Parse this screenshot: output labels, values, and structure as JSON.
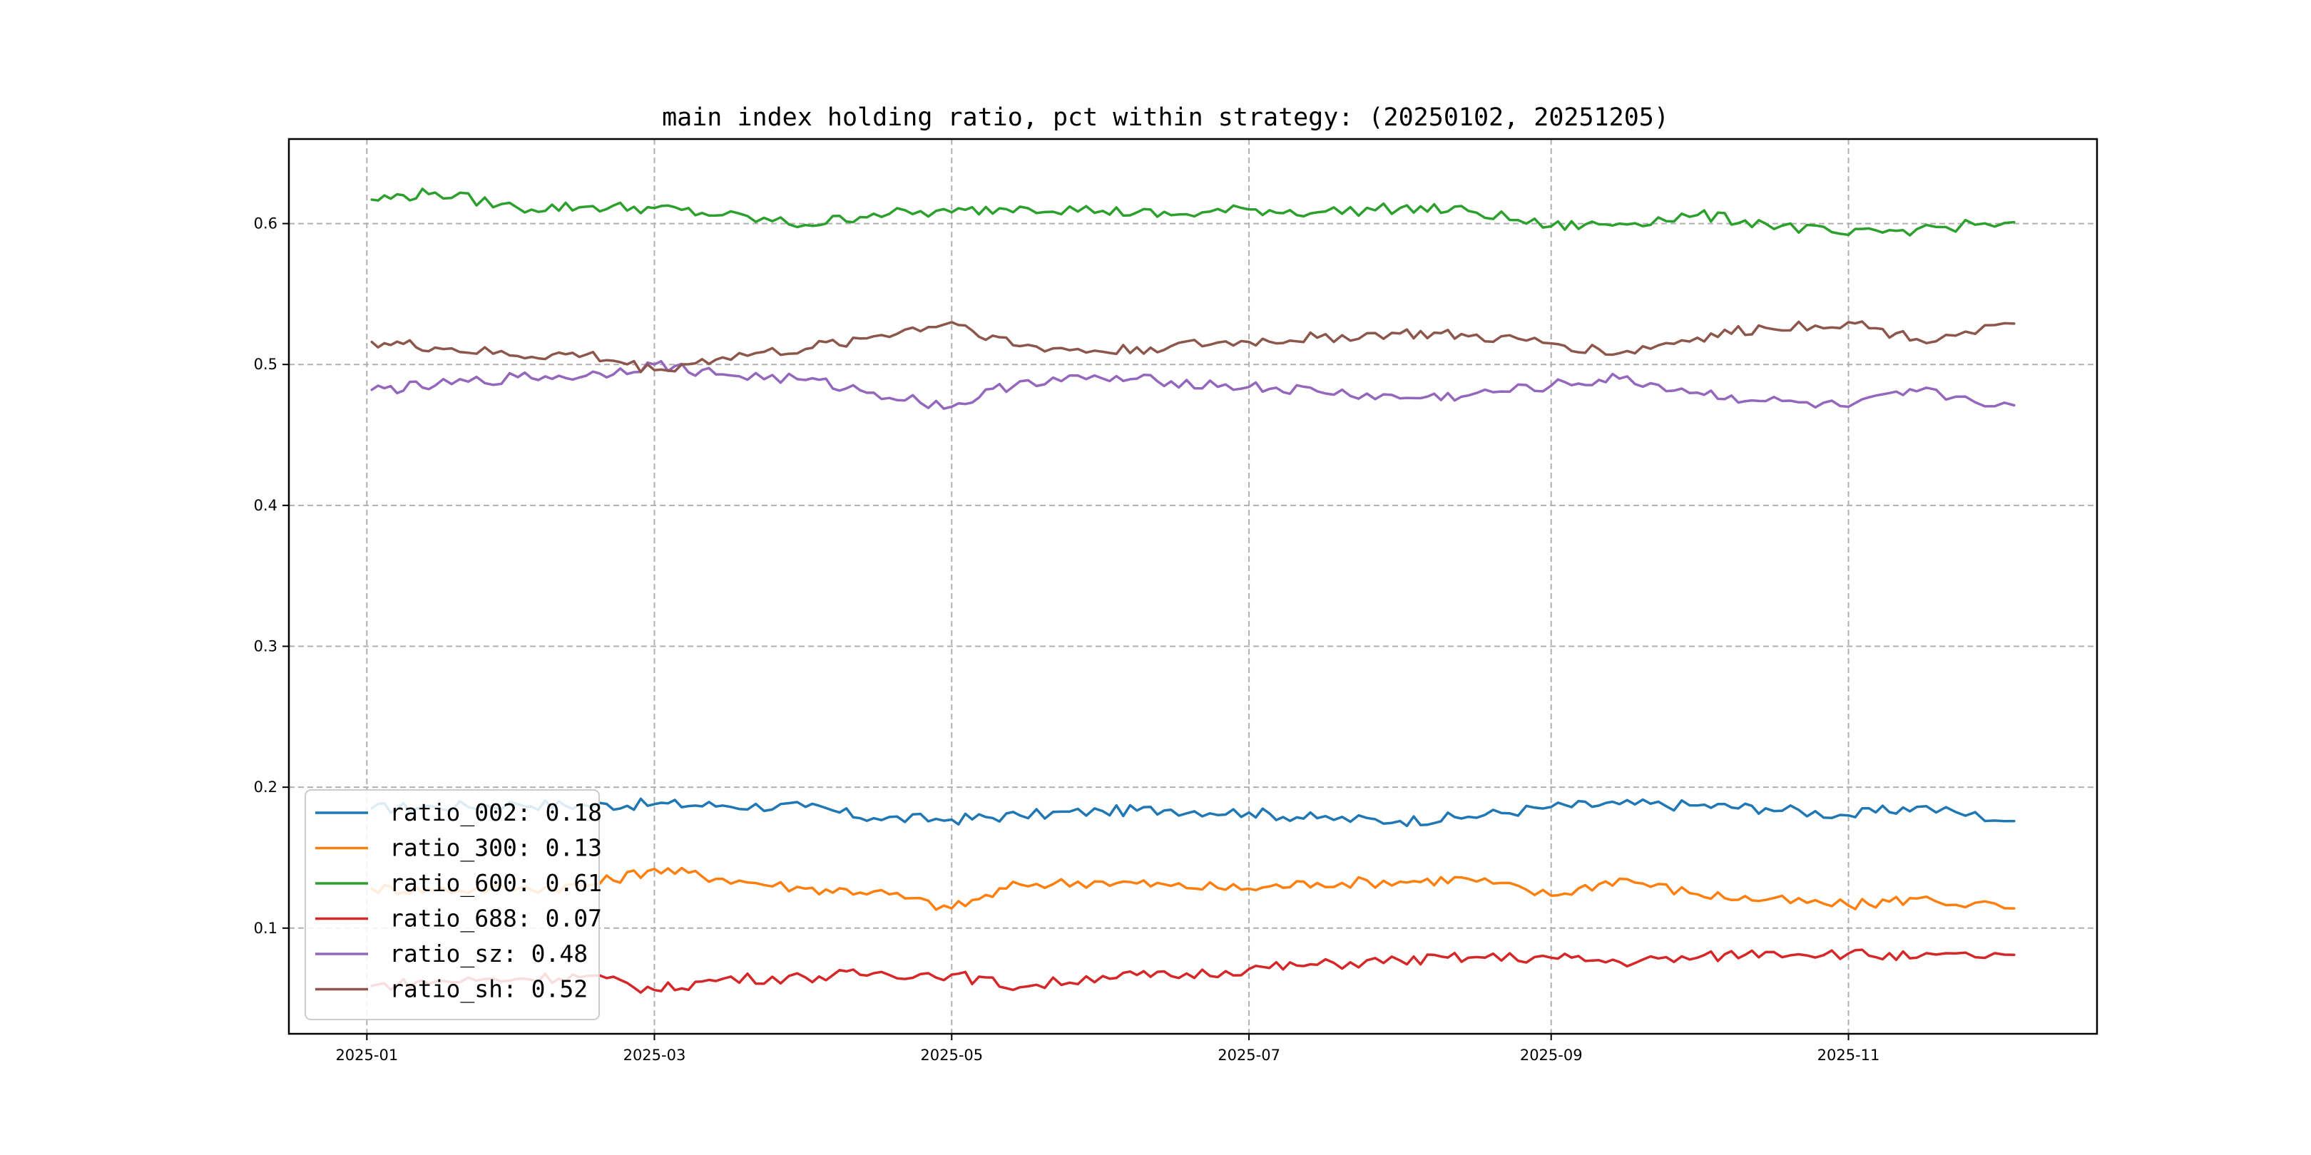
{
  "chart_data": {
    "type": "line",
    "title": "main index holding ratio, pct within strategy: (20250102, 20251205)",
    "xlabel": "",
    "ylabel": "",
    "x_range": [
      "2025-01-02",
      "2025-12-05"
    ],
    "xlim": [
      "2024-12-16",
      "2025-12-22"
    ],
    "ylim": [
      0.025,
      0.66
    ],
    "x_ticks": [
      "2025-01",
      "2025-03",
      "2025-05",
      "2025-07",
      "2025-09",
      "2025-11"
    ],
    "y_ticks": [
      0.1,
      0.2,
      0.3,
      0.4,
      0.5,
      0.6
    ],
    "grid": true,
    "legend_position": "lower-left",
    "x_dates": [
      "2025-01-02",
      "2025-01-15",
      "2025-02-01",
      "2025-02-15",
      "2025-03-01",
      "2025-03-15",
      "2025-04-01",
      "2025-04-15",
      "2025-05-01",
      "2025-05-15",
      "2025-06-01",
      "2025-06-15",
      "2025-07-01",
      "2025-07-15",
      "2025-08-01",
      "2025-08-15",
      "2025-09-01",
      "2025-09-15",
      "2025-10-01",
      "2025-10-15",
      "2025-11-01",
      "2025-11-15",
      "2025-12-05"
    ],
    "series": [
      {
        "name": "ratio_002",
        "legend_label": "ratio_002: 0.18",
        "color": "#1f77b4",
        "values": [
          0.185,
          0.186,
          0.188,
          0.187,
          0.188,
          0.187,
          0.186,
          0.178,
          0.177,
          0.18,
          0.183,
          0.184,
          0.182,
          0.178,
          0.176,
          0.179,
          0.186,
          0.188,
          0.187,
          0.185,
          0.18,
          0.186,
          0.176
        ]
      },
      {
        "name": "ratio_300",
        "legend_label": "ratio_300: 0.13",
        "color": "#ff7f0e",
        "values": [
          0.128,
          0.127,
          0.128,
          0.13,
          0.142,
          0.135,
          0.128,
          0.126,
          0.114,
          0.131,
          0.133,
          0.13,
          0.128,
          0.132,
          0.133,
          0.135,
          0.123,
          0.135,
          0.124,
          0.12,
          0.116,
          0.121,
          0.114
        ]
      },
      {
        "name": "ratio_600",
        "legend_label": "ratio_600: 0.61",
        "color": "#2ca02c",
        "values": [
          0.617,
          0.622,
          0.611,
          0.612,
          0.611,
          0.606,
          0.599,
          0.607,
          0.608,
          0.612,
          0.609,
          0.606,
          0.61,
          0.608,
          0.611,
          0.609,
          0.598,
          0.6,
          0.606,
          0.6,
          0.592,
          0.596,
          0.601
        ]
      },
      {
        "name": "ratio_688",
        "legend_label": "ratio_688: 0.07",
        "color": "#d62728",
        "values": [
          0.059,
          0.062,
          0.064,
          0.066,
          0.056,
          0.064,
          0.065,
          0.068,
          0.067,
          0.058,
          0.066,
          0.066,
          0.071,
          0.074,
          0.077,
          0.079,
          0.079,
          0.076,
          0.079,
          0.083,
          0.082,
          0.079,
          0.081
        ]
      },
      {
        "name": "ratio_sz",
        "legend_label": "ratio_sz: 0.48",
        "color": "#9467bd",
        "values": [
          0.482,
          0.485,
          0.491,
          0.492,
          0.5,
          0.493,
          0.489,
          0.48,
          0.47,
          0.488,
          0.49,
          0.488,
          0.484,
          0.481,
          0.476,
          0.478,
          0.485,
          0.49,
          0.48,
          0.474,
          0.47,
          0.481,
          0.471
        ]
      },
      {
        "name": "ratio_sh",
        "legend_label": "ratio_sh: 0.52",
        "color": "#8c564b",
        "values": [
          0.516,
          0.512,
          0.506,
          0.507,
          0.496,
          0.505,
          0.511,
          0.52,
          0.53,
          0.513,
          0.509,
          0.513,
          0.516,
          0.519,
          0.522,
          0.52,
          0.515,
          0.508,
          0.519,
          0.526,
          0.53,
          0.518,
          0.529
        ]
      }
    ]
  }
}
